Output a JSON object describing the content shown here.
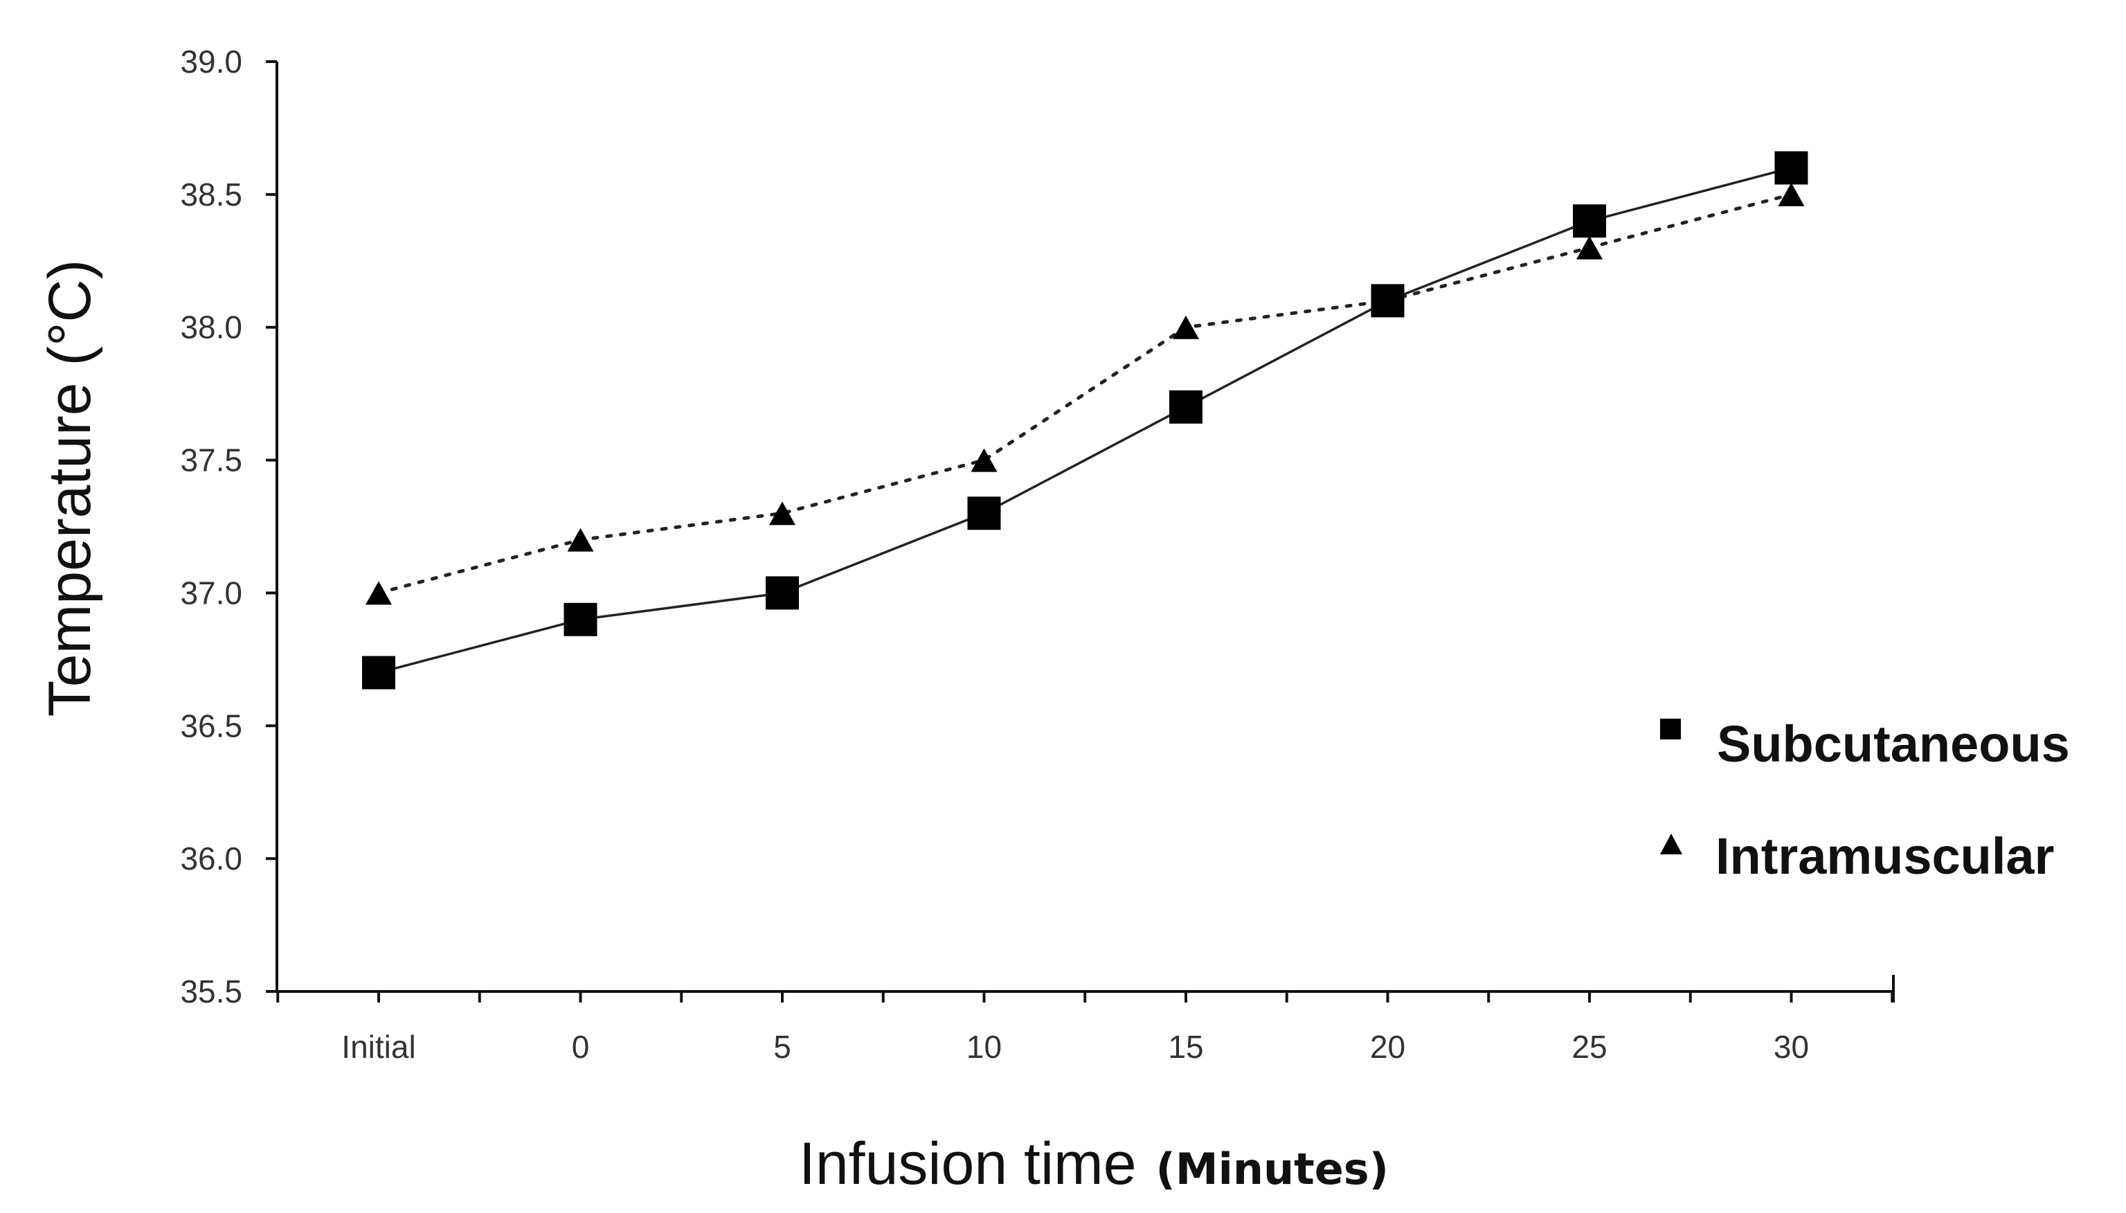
{
  "chart_data": {
    "type": "line",
    "title": "",
    "xlabel": "Infusion time",
    "xlabel_unit": "(Minutes)",
    "ylabel": "Temperature (°C)",
    "categories": [
      "Initial",
      "0",
      "5",
      "10",
      "15",
      "20",
      "25",
      "30"
    ],
    "ylim": [
      35.5,
      39.0
    ],
    "yticks": [
      "35.5",
      "36.0",
      "36.5",
      "37.0",
      "37.5",
      "38.0",
      "38.5",
      "39.0"
    ],
    "grid": false,
    "legend_position": "right",
    "series": [
      {
        "name": "Subcutaneous",
        "marker": "square",
        "line": "solid",
        "values": [
          36.7,
          36.9,
          37.0,
          37.3,
          37.7,
          38.1,
          38.4,
          38.6
        ]
      },
      {
        "name": "Intramuscular",
        "marker": "triangle",
        "line": "dotted",
        "values": [
          37.0,
          37.2,
          37.3,
          37.5,
          38.0,
          38.1,
          38.3,
          38.5
        ]
      }
    ]
  }
}
